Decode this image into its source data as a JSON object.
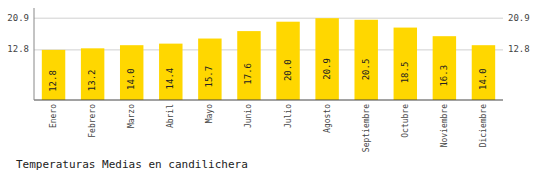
{
  "chart_data": {
    "type": "bar",
    "title": "Temperaturas Medias en candilichera",
    "categories": [
      "Enero",
      "Febrero",
      "Marzo",
      "Abril",
      "Mayo",
      "Junio",
      "Julio",
      "Agosto",
      "Septiembre",
      "Octubre",
      "Noviembre",
      "Diciembre"
    ],
    "values": [
      12.8,
      13.2,
      14.0,
      14.4,
      15.7,
      17.6,
      20.0,
      20.9,
      20.5,
      18.5,
      16.3,
      14.0
    ],
    "value_labels": [
      "12.8",
      "13.2",
      "14.0",
      "14.4",
      "15.7",
      "17.6",
      "20.0",
      "20.9",
      "20.5",
      "18.5",
      "16.3",
      "14.0"
    ],
    "color": "#FFD700",
    "ylim": [
      0,
      23.5
    ],
    "yticks": [
      12.8,
      20.9
    ],
    "grid": true,
    "data_labels": true
  }
}
